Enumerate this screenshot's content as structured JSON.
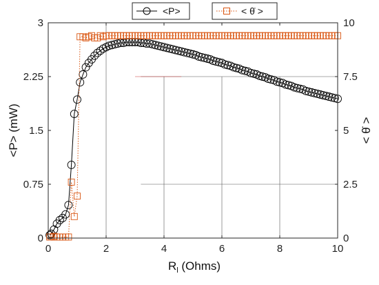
{
  "chart_data": {
    "type": "line",
    "xlabel": "R_l (Ohms)",
    "xlabel_main": "R",
    "xlabel_sub": "l",
    "xlabel_rest": " (Ohms)",
    "ylabel_left": "<P> (mW)",
    "ylabel_right": "< θ̇ >",
    "xlim": [
      0,
      10
    ],
    "ylim_left": [
      0,
      3
    ],
    "ylim_right": [
      0,
      10
    ],
    "x_ticks": [
      0,
      2,
      4,
      6,
      8,
      10
    ],
    "y_left_ticks": [
      0,
      0.75,
      1.5,
      2.25,
      3
    ],
    "y_left_tick_labels": [
      "0",
      "0.75",
      "1.5",
      "2.25",
      "3"
    ],
    "y_right_ticks": [
      0,
      2.5,
      5,
      7.5,
      10
    ],
    "y_right_tick_labels": [
      "0",
      "2.5",
      "5",
      "7.5",
      "10"
    ],
    "grid": "partial",
    "legend_placement": "top-center",
    "series": [
      {
        "name": "<P>",
        "axis": "left",
        "color": "#000000",
        "marker": "circle",
        "linestyle": "solid",
        "x": [
          0.05,
          0.1,
          0.2,
          0.3,
          0.4,
          0.5,
          0.6,
          0.7,
          0.8,
          0.9,
          1.0,
          1.1,
          1.2,
          1.3,
          1.4,
          1.5,
          1.6,
          1.7,
          1.8,
          1.9,
          2.0,
          2.1,
          2.2,
          2.3,
          2.4,
          2.5,
          2.6,
          2.7,
          2.8,
          2.9,
          3.0,
          3.1,
          3.2,
          3.3,
          3.4,
          3.5,
          3.6,
          3.7,
          3.8,
          3.9,
          4.0,
          4.1,
          4.2,
          4.3,
          4.4,
          4.5,
          4.6,
          4.7,
          4.8,
          4.9,
          5.0,
          5.1,
          5.2,
          5.3,
          5.4,
          5.5,
          5.6,
          5.7,
          5.8,
          5.9,
          6.0,
          6.1,
          6.2,
          6.3,
          6.4,
          6.5,
          6.6,
          6.7,
          6.8,
          6.9,
          7.0,
          7.1,
          7.2,
          7.3,
          7.4,
          7.5,
          7.6,
          7.7,
          7.8,
          7.9,
          8.0,
          8.1,
          8.2,
          8.3,
          8.4,
          8.5,
          8.6,
          8.7,
          8.8,
          8.9,
          9.0,
          9.1,
          9.2,
          9.3,
          9.4,
          9.5,
          9.6,
          9.7,
          9.8,
          9.9,
          10.0
        ],
        "y": [
          0.04,
          0.06,
          0.12,
          0.2,
          0.25,
          0.28,
          0.33,
          0.46,
          1.02,
          1.73,
          1.93,
          2.17,
          2.28,
          2.38,
          2.44,
          2.49,
          2.54,
          2.58,
          2.61,
          2.64,
          2.66,
          2.68,
          2.69,
          2.7,
          2.71,
          2.72,
          2.72,
          2.73,
          2.73,
          2.73,
          2.73,
          2.73,
          2.72,
          2.72,
          2.71,
          2.71,
          2.7,
          2.69,
          2.68,
          2.67,
          2.66,
          2.65,
          2.64,
          2.63,
          2.62,
          2.61,
          2.6,
          2.59,
          2.58,
          2.57,
          2.56,
          2.55,
          2.53,
          2.52,
          2.51,
          2.5,
          2.49,
          2.47,
          2.46,
          2.45,
          2.44,
          2.42,
          2.41,
          2.4,
          2.38,
          2.37,
          2.36,
          2.34,
          2.33,
          2.32,
          2.3,
          2.29,
          2.28,
          2.26,
          2.25,
          2.24,
          2.22,
          2.21,
          2.2,
          2.18,
          2.17,
          2.16,
          2.14,
          2.13,
          2.12,
          2.1,
          2.09,
          2.08,
          2.07,
          2.05,
          2.04,
          2.03,
          2.02,
          2.01,
          2.0,
          1.99,
          1.98,
          1.97,
          1.96,
          1.95,
          1.94
        ]
      },
      {
        "name": "< θ̇ >",
        "axis": "right",
        "color": "#d9540f",
        "marker": "square",
        "linestyle": "dotted",
        "x": [
          0.05,
          0.1,
          0.2,
          0.3,
          0.4,
          0.5,
          0.6,
          0.7,
          0.8,
          0.9,
          1.0,
          1.1,
          1.2,
          1.3,
          1.4,
          1.5,
          1.6,
          1.7,
          1.8,
          1.9,
          2.0,
          2.1,
          2.2,
          2.3,
          2.4,
          2.5,
          2.6,
          2.7,
          2.8,
          2.9,
          3.0,
          3.1,
          3.2,
          3.3,
          3.4,
          3.5,
          3.6,
          3.7,
          3.8,
          3.9,
          4.0,
          4.1,
          4.2,
          4.3,
          4.4,
          4.5,
          4.6,
          4.7,
          4.8,
          4.9,
          5.0,
          5.1,
          5.2,
          5.3,
          5.4,
          5.5,
          5.6,
          5.7,
          5.8,
          5.9,
          6.0,
          6.1,
          6.2,
          6.3,
          6.4,
          6.5,
          6.6,
          6.7,
          6.8,
          6.9,
          7.0,
          7.1,
          7.2,
          7.3,
          7.4,
          7.5,
          7.6,
          7.7,
          7.8,
          7.9,
          8.0,
          8.1,
          8.2,
          8.3,
          8.4,
          8.5,
          8.6,
          8.7,
          8.8,
          8.9,
          9.0,
          9.1,
          9.2,
          9.3,
          9.4,
          9.5,
          9.6,
          9.7,
          9.8,
          9.9,
          10.0
        ],
        "y": [
          0.05,
          0.05,
          0.08,
          0.05,
          0.05,
          0.05,
          0.05,
          0.05,
          2.6,
          1.0,
          1.95,
          9.35,
          9.35,
          9.3,
          9.35,
          9.4,
          9.3,
          9.3,
          9.4,
          9.35,
          9.4,
          9.4,
          9.4,
          9.4,
          9.4,
          9.4,
          9.4,
          9.4,
          9.4,
          9.4,
          9.4,
          9.4,
          9.4,
          9.4,
          9.4,
          9.4,
          9.4,
          9.4,
          9.4,
          9.4,
          9.4,
          9.4,
          9.4,
          9.4,
          9.4,
          9.4,
          9.4,
          9.4,
          9.4,
          9.4,
          9.4,
          9.4,
          9.4,
          9.4,
          9.4,
          9.4,
          9.4,
          9.4,
          9.4,
          9.4,
          9.4,
          9.4,
          9.4,
          9.4,
          9.4,
          9.4,
          9.4,
          9.4,
          9.4,
          9.4,
          9.4,
          9.4,
          9.4,
          9.4,
          9.4,
          9.4,
          9.4,
          9.4,
          9.4,
          9.4,
          9.4,
          9.4,
          9.4,
          9.4,
          9.4,
          9.4,
          9.4,
          9.4,
          9.4,
          9.4,
          9.4,
          9.4,
          9.4,
          9.4,
          9.4,
          9.4,
          9.4,
          9.4,
          9.4,
          9.4,
          9.4
        ]
      }
    ]
  },
  "legend": {
    "items": [
      {
        "label": "<P>",
        "color": "#000000",
        "marker": "circle"
      },
      {
        "label": "< θ̇ >",
        "color": "#d9540f",
        "marker": "square"
      }
    ]
  }
}
